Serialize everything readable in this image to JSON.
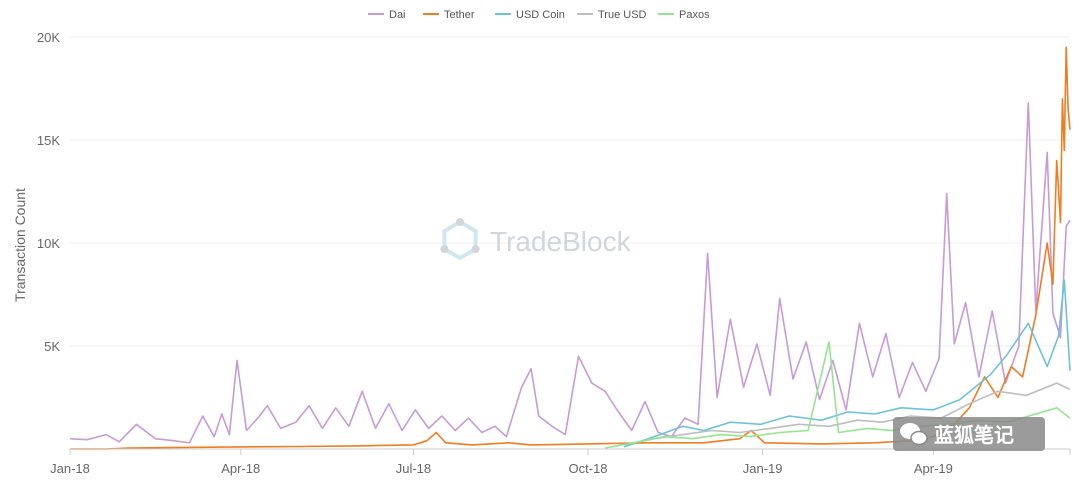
{
  "colors": {
    "Dai": "#c79ad9",
    "Tether": "#ef7d22",
    "USD Coin": "#6cc3d9",
    "True USD": "#bdbdbd",
    "Paxos": "#95e48f",
    "grid": "#eeeeee",
    "axis": "#cccccc"
  },
  "watermark": {
    "text": "TradeBlock",
    "icon": "hexagon-logo-icon"
  },
  "stamp": {
    "text": "蓝狐笔记",
    "icon": "wechat-icon"
  },
  "chart_data": {
    "type": "line",
    "title": "",
    "xlabel": "",
    "ylabel": "Transaction Count",
    "x_ticks": [
      "Jan-18",
      "Apr-18",
      "Jul-18",
      "Oct-18",
      "Jan-19",
      "Apr-19"
    ],
    "y_ticks": [
      "5K",
      "10K",
      "15K",
      "20K"
    ],
    "ylim": [
      0,
      20000
    ],
    "xlim": [
      "2018-01-01",
      "2019-06-12"
    ],
    "grid": "horizontal",
    "legend_position": "top-center",
    "series": [
      {
        "name": "Dai",
        "points": [
          [
            "2018-01-01",
            500
          ],
          [
            "2018-01-10",
            450
          ],
          [
            "2018-01-20",
            700
          ],
          [
            "2018-01-27",
            350
          ],
          [
            "2018-02-05",
            1200
          ],
          [
            "2018-02-15",
            500
          ],
          [
            "2018-02-25",
            400
          ],
          [
            "2018-03-05",
            300
          ],
          [
            "2018-03-12",
            1600
          ],
          [
            "2018-03-18",
            600
          ],
          [
            "2018-03-22",
            1700
          ],
          [
            "2018-03-26",
            700
          ],
          [
            "2018-03-30",
            4300
          ],
          [
            "2018-04-04",
            900
          ],
          [
            "2018-04-10",
            1500
          ],
          [
            "2018-04-15",
            2100
          ],
          [
            "2018-04-22",
            1000
          ],
          [
            "2018-04-30",
            1300
          ],
          [
            "2018-05-07",
            2100
          ],
          [
            "2018-05-14",
            1000
          ],
          [
            "2018-05-21",
            2000
          ],
          [
            "2018-05-28",
            1100
          ],
          [
            "2018-06-04",
            2800
          ],
          [
            "2018-06-11",
            1000
          ],
          [
            "2018-06-18",
            2200
          ],
          [
            "2018-06-25",
            900
          ],
          [
            "2018-07-02",
            1900
          ],
          [
            "2018-07-09",
            1000
          ],
          [
            "2018-07-16",
            1600
          ],
          [
            "2018-07-23",
            900
          ],
          [
            "2018-07-30",
            1500
          ],
          [
            "2018-08-06",
            800
          ],
          [
            "2018-08-13",
            1100
          ],
          [
            "2018-08-19",
            600
          ],
          [
            "2018-08-27",
            3000
          ],
          [
            "2018-09-01",
            3900
          ],
          [
            "2018-09-05",
            1600
          ],
          [
            "2018-09-12",
            1100
          ],
          [
            "2018-09-19",
            700
          ],
          [
            "2018-09-26",
            4500
          ],
          [
            "2018-10-03",
            3200
          ],
          [
            "2018-10-10",
            2800
          ],
          [
            "2018-10-17",
            1800
          ],
          [
            "2018-10-24",
            900
          ],
          [
            "2018-10-31",
            2300
          ],
          [
            "2018-11-07",
            800
          ],
          [
            "2018-11-14",
            600
          ],
          [
            "2018-11-21",
            1500
          ],
          [
            "2018-11-28",
            1200
          ],
          [
            "2018-12-03",
            9500
          ],
          [
            "2018-12-08",
            2500
          ],
          [
            "2018-12-15",
            6300
          ],
          [
            "2018-12-22",
            3000
          ],
          [
            "2018-12-29",
            5100
          ],
          [
            "2019-01-05",
            2600
          ],
          [
            "2019-01-10",
            7300
          ],
          [
            "2019-01-17",
            3400
          ],
          [
            "2019-01-24",
            5200
          ],
          [
            "2019-01-31",
            2400
          ],
          [
            "2019-02-07",
            4300
          ],
          [
            "2019-02-14",
            1900
          ],
          [
            "2019-02-21",
            6100
          ],
          [
            "2019-02-28",
            3500
          ],
          [
            "2019-03-07",
            5600
          ],
          [
            "2019-03-14",
            2500
          ],
          [
            "2019-03-21",
            4200
          ],
          [
            "2019-03-28",
            2800
          ],
          [
            "2019-04-04",
            4400
          ],
          [
            "2019-04-08",
            12400
          ],
          [
            "2019-04-12",
            5100
          ],
          [
            "2019-04-18",
            7100
          ],
          [
            "2019-04-25",
            3500
          ],
          [
            "2019-05-02",
            6700
          ],
          [
            "2019-05-09",
            3200
          ],
          [
            "2019-05-16",
            5000
          ],
          [
            "2019-05-21",
            16800
          ],
          [
            "2019-05-25",
            6700
          ],
          [
            "2019-05-31",
            14400
          ],
          [
            "2019-06-03",
            6600
          ],
          [
            "2019-06-07",
            5400
          ],
          [
            "2019-06-10",
            10800
          ],
          [
            "2019-06-12",
            11100
          ]
        ]
      },
      {
        "name": "Tether",
        "points": [
          [
            "2018-01-01",
            0
          ],
          [
            "2018-01-20",
            0
          ],
          [
            "2018-02-01",
            50
          ],
          [
            "2018-03-01",
            80
          ],
          [
            "2018-04-01",
            100
          ],
          [
            "2018-05-01",
            120
          ],
          [
            "2018-06-01",
            150
          ],
          [
            "2018-07-01",
            200
          ],
          [
            "2018-07-08",
            400
          ],
          [
            "2018-07-13",
            800
          ],
          [
            "2018-07-18",
            300
          ],
          [
            "2018-08-01",
            200
          ],
          [
            "2018-08-20",
            300
          ],
          [
            "2018-09-01",
            200
          ],
          [
            "2018-10-01",
            250
          ],
          [
            "2018-11-01",
            300
          ],
          [
            "2018-12-01",
            300
          ],
          [
            "2018-12-20",
            500
          ],
          [
            "2018-12-26",
            900
          ],
          [
            "2019-01-02",
            300
          ],
          [
            "2019-02-01",
            250
          ],
          [
            "2019-03-01",
            300
          ],
          [
            "2019-03-20",
            400
          ],
          [
            "2019-04-01",
            600
          ],
          [
            "2019-04-12",
            1200
          ],
          [
            "2019-04-20",
            2000
          ],
          [
            "2019-04-28",
            3500
          ],
          [
            "2019-05-05",
            2500
          ],
          [
            "2019-05-12",
            4000
          ],
          [
            "2019-05-18",
            3500
          ],
          [
            "2019-05-25",
            6500
          ],
          [
            "2019-05-31",
            10000
          ],
          [
            "2019-06-03",
            8000
          ],
          [
            "2019-06-05",
            14000
          ],
          [
            "2019-06-07",
            11000
          ],
          [
            "2019-06-08",
            17000
          ],
          [
            "2019-06-09",
            14500
          ],
          [
            "2019-06-10",
            19500
          ],
          [
            "2019-06-11",
            16500
          ],
          [
            "2019-06-12",
            15500
          ]
        ]
      },
      {
        "name": "USD Coin",
        "points": [
          [
            "2018-10-20",
            100
          ],
          [
            "2018-11-05",
            600
          ],
          [
            "2018-11-20",
            1100
          ],
          [
            "2018-12-01",
            900
          ],
          [
            "2018-12-15",
            1300
          ],
          [
            "2018-12-31",
            1200
          ],
          [
            "2019-01-15",
            1600
          ],
          [
            "2019-02-01",
            1400
          ],
          [
            "2019-02-15",
            1800
          ],
          [
            "2019-03-01",
            1700
          ],
          [
            "2019-03-15",
            2000
          ],
          [
            "2019-04-01",
            1900
          ],
          [
            "2019-04-15",
            2400
          ],
          [
            "2019-05-01",
            3600
          ],
          [
            "2019-05-10",
            4600
          ],
          [
            "2019-05-21",
            6100
          ],
          [
            "2019-05-31",
            4000
          ],
          [
            "2019-06-06",
            5500
          ],
          [
            "2019-06-09",
            8200
          ],
          [
            "2019-06-12",
            3800
          ]
        ]
      },
      {
        "name": "True USD",
        "points": [
          [
            "2018-10-20",
            200
          ],
          [
            "2018-11-05",
            500
          ],
          [
            "2018-11-20",
            700
          ],
          [
            "2018-12-05",
            900
          ],
          [
            "2018-12-20",
            800
          ],
          [
            "2019-01-05",
            1000
          ],
          [
            "2019-01-20",
            1200
          ],
          [
            "2019-02-05",
            1100
          ],
          [
            "2019-02-20",
            1400
          ],
          [
            "2019-03-05",
            1300
          ],
          [
            "2019-03-20",
            1600
          ],
          [
            "2019-04-05",
            1500
          ],
          [
            "2019-04-20",
            2200
          ],
          [
            "2019-05-05",
            2800
          ],
          [
            "2019-05-20",
            2600
          ],
          [
            "2019-06-05",
            3200
          ],
          [
            "2019-06-12",
            2900
          ]
        ]
      },
      {
        "name": "Paxos",
        "points": [
          [
            "2018-10-10",
            50
          ],
          [
            "2018-10-25",
            300
          ],
          [
            "2018-11-10",
            600
          ],
          [
            "2018-11-25",
            500
          ],
          [
            "2018-12-10",
            700
          ],
          [
            "2018-12-25",
            600
          ],
          [
            "2019-01-10",
            800
          ],
          [
            "2019-01-25",
            900
          ],
          [
            "2019-02-05",
            5200
          ],
          [
            "2019-02-10",
            800
          ],
          [
            "2019-02-25",
            1000
          ],
          [
            "2019-03-10",
            900
          ],
          [
            "2019-03-25",
            1100
          ],
          [
            "2019-04-10",
            1200
          ],
          [
            "2019-04-25",
            1400
          ],
          [
            "2019-05-10",
            1300
          ],
          [
            "2019-05-25",
            1700
          ],
          [
            "2019-06-05",
            2000
          ],
          [
            "2019-06-12",
            1500
          ]
        ]
      }
    ]
  }
}
